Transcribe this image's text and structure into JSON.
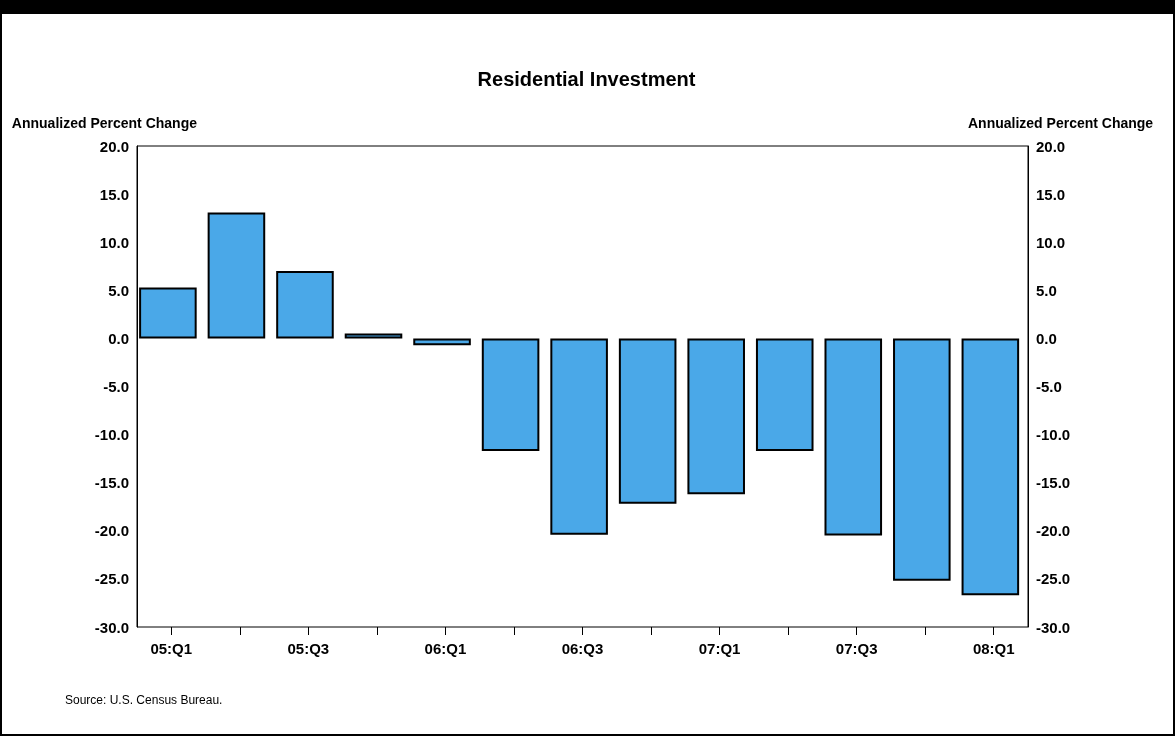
{
  "chart_data": {
    "type": "bar",
    "title": "Residential Investment",
    "ylabel": "Annualized Percent Change",
    "y2label": "Annualized Percent Change",
    "categories": [
      "05:Q1",
      null,
      "05:Q3",
      null,
      "06:Q1",
      null,
      "06:Q3",
      null,
      "07:Q1",
      null,
      "07:Q3",
      null,
      "08:Q1"
    ],
    "values": [
      5.3,
      13.1,
      7.0,
      0.5,
      -0.7,
      -11.7,
      -20.4,
      -17.2,
      -16.2,
      -11.7,
      -20.5,
      -25.2,
      -26.7
    ],
    "color": "#4aa8e8",
    "ylim": [
      -30,
      20
    ],
    "yticks": [
      {
        "value": -30,
        "label": "-30.0"
      },
      {
        "value": -25,
        "label": "-25.0"
      },
      {
        "value": -20,
        "label": "-20.0"
      },
      {
        "value": -15,
        "label": "-15.0"
      },
      {
        "value": -10,
        "label": "-10.0"
      },
      {
        "value": -5,
        "label": "-5.0"
      },
      {
        "value": 0,
        "label": "0.0"
      },
      {
        "value": 5,
        "label": "5.0"
      },
      {
        "value": 10,
        "label": "10.0"
      },
      {
        "value": 15,
        "label": "15.0"
      },
      {
        "value": 20,
        "label": "20.0"
      }
    ],
    "y2lim": [
      -30,
      20
    ],
    "y2ticks": [
      {
        "value": -30,
        "label": "-30.0"
      },
      {
        "value": -25,
        "label": "-25.0"
      },
      {
        "value": -20,
        "label": "-20.0"
      },
      {
        "value": -15,
        "label": "-15.0"
      },
      {
        "value": -10,
        "label": "-10.0"
      },
      {
        "value": -5,
        "label": "-5.0"
      },
      {
        "value": 0,
        "label": "0.0"
      },
      {
        "value": 5,
        "label": "5.0"
      },
      {
        "value": 10,
        "label": "10.0"
      },
      {
        "value": 15,
        "label": "15.0"
      },
      {
        "value": 20,
        "label": "20.0"
      }
    ],
    "grid": false,
    "annotations": [
      "Source: U.S. Census Bureau."
    ]
  }
}
